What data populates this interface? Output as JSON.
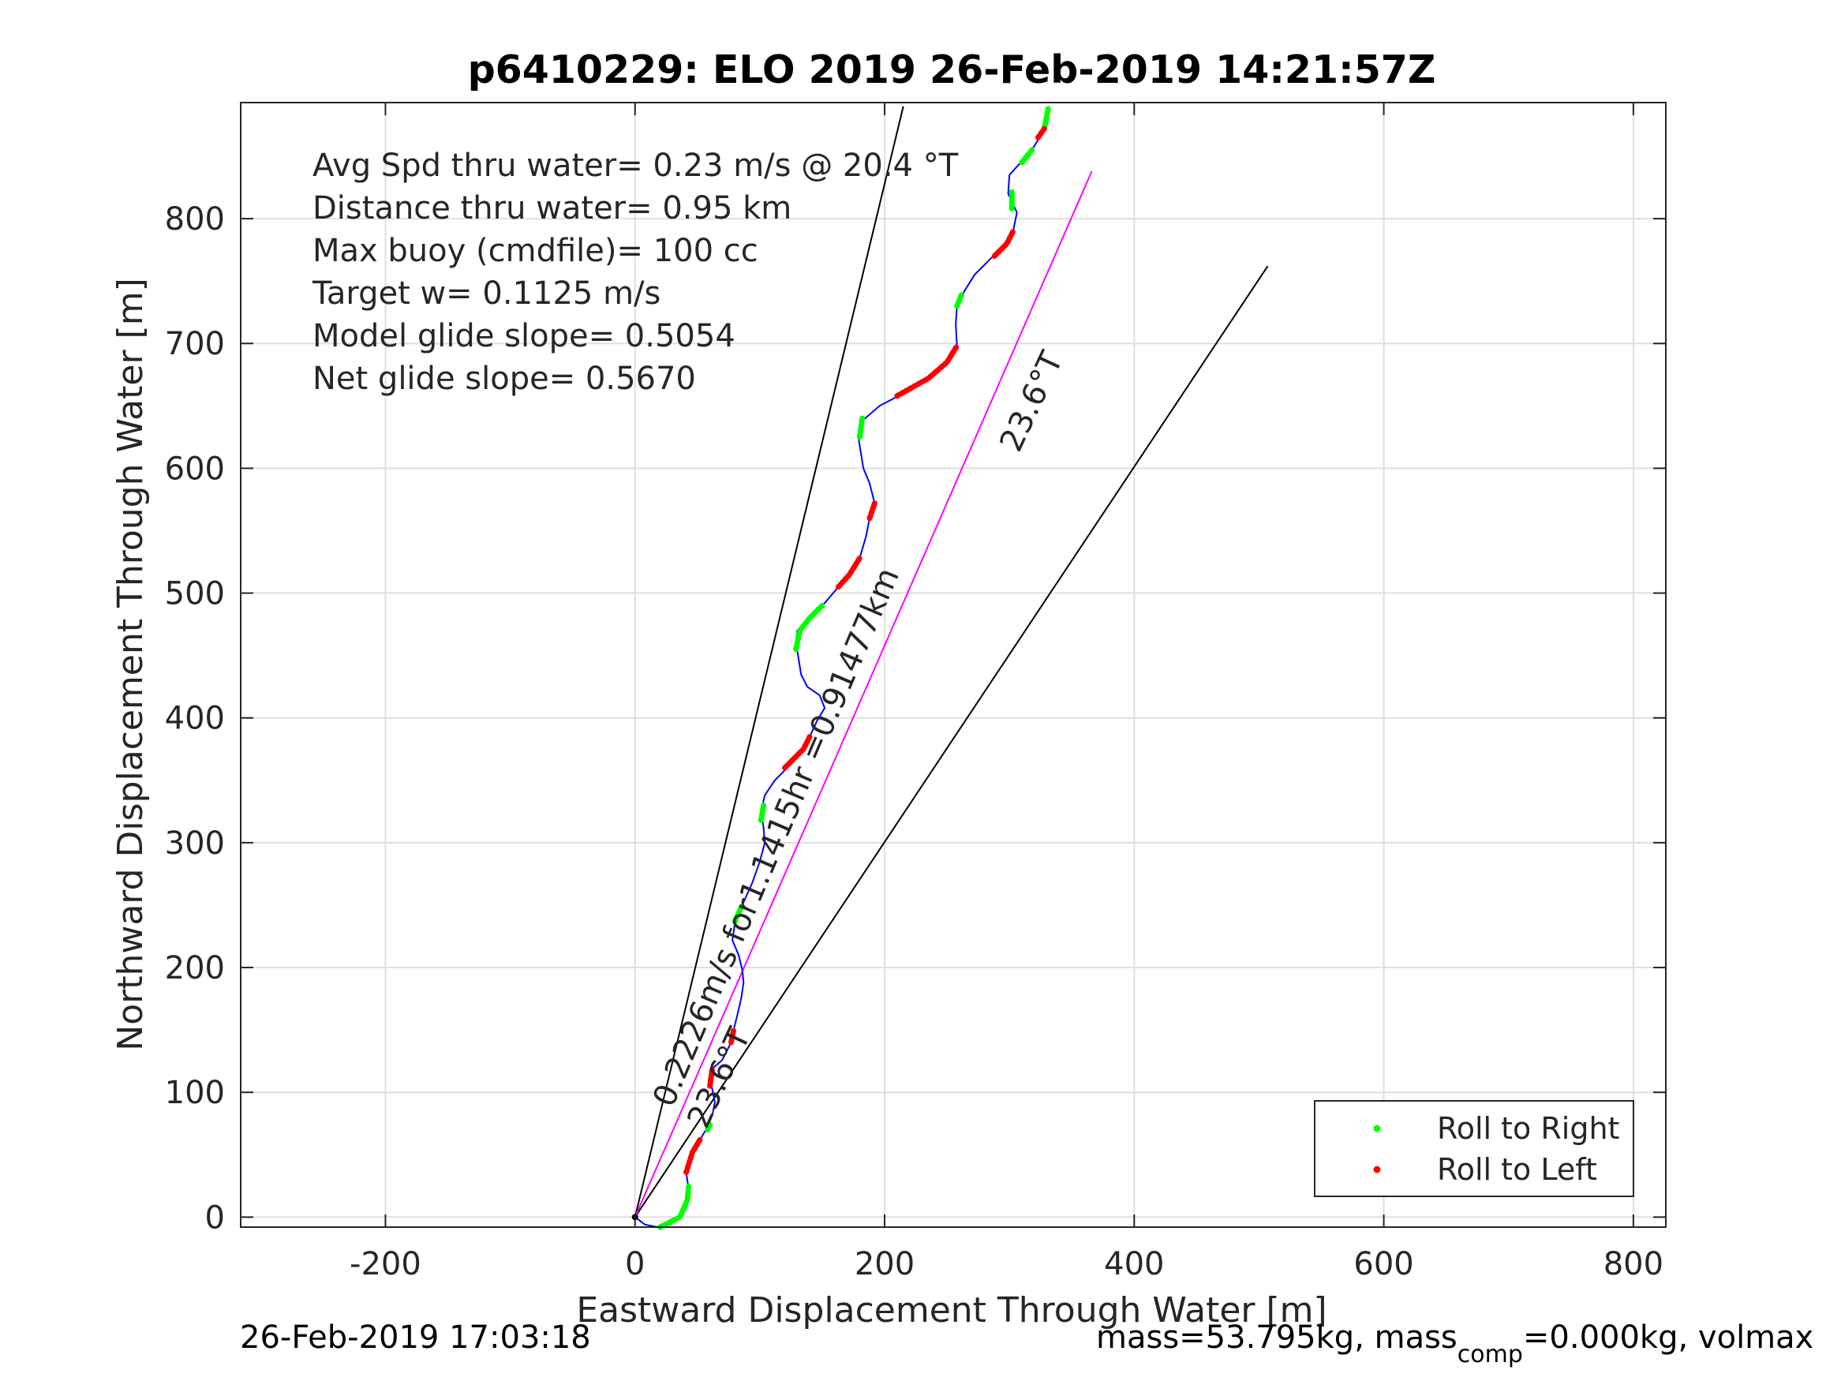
{
  "chart_data": {
    "type": "line",
    "title": "p6410229: ELO 2019 26-Feb-2019 14:21:57Z",
    "xlabel": "Eastward Displacement Through Water [m]",
    "ylabel": "Northward Displacement Through Water [m]",
    "xlim": [
      -316,
      826
    ],
    "ylim": [
      -8,
      893
    ],
    "xticks": [
      -200,
      0,
      200,
      400,
      600,
      800
    ],
    "yticks": [
      0,
      100,
      200,
      300,
      400,
      500,
      600,
      700,
      800
    ],
    "grid": true,
    "legend_position": "bottom-right",
    "stats": [
      "Avg Spd thru water=  0.23 m/s @  20.4 °T",
      "Distance thru water=  0.95 km",
      "Max buoy (cmdfile)= 100 cc",
      "Target w= 0.1125 m/s",
      "Model glide slope= 0.5054",
      "Net glide slope= 0.5670"
    ],
    "annotations": {
      "course_label": "23.6°T",
      "net_label": "0.2226m/s for1.1415hr =0.91477km",
      "near_origin_label": "23.6°T"
    },
    "track": [
      [
        0,
        0
      ],
      [
        8,
        -6
      ],
      [
        18,
        -8
      ],
      [
        28,
        -6
      ],
      [
        36,
        0
      ],
      [
        41,
        8
      ],
      [
        43,
        22
      ],
      [
        41,
        36
      ],
      [
        45,
        50
      ],
      [
        52,
        62
      ],
      [
        58,
        72
      ],
      [
        62,
        82
      ],
      [
        64,
        92
      ],
      [
        62,
        102
      ],
      [
        60,
        112
      ],
      [
        63,
        120
      ],
      [
        70,
        126
      ],
      [
        76,
        138
      ],
      [
        79,
        150
      ],
      [
        82,
        162
      ],
      [
        85,
        175
      ],
      [
        87,
        188
      ],
      [
        86,
        198
      ],
      [
        83,
        210
      ],
      [
        78,
        222
      ],
      [
        80,
        235
      ],
      [
        86,
        250
      ],
      [
        94,
        268
      ],
      [
        100,
        285
      ],
      [
        104,
        300
      ],
      [
        103,
        312
      ],
      [
        101,
        325
      ],
      [
        104,
        338
      ],
      [
        112,
        350
      ],
      [
        122,
        360
      ],
      [
        132,
        372
      ],
      [
        140,
        385
      ],
      [
        146,
        398
      ],
      [
        152,
        408
      ],
      [
        148,
        418
      ],
      [
        138,
        425
      ],
      [
        133,
        435
      ],
      [
        131,
        448
      ],
      [
        129,
        460
      ],
      [
        130,
        470
      ],
      [
        140,
        480
      ],
      [
        152,
        492
      ],
      [
        163,
        505
      ],
      [
        172,
        515
      ],
      [
        180,
        528
      ],
      [
        185,
        545
      ],
      [
        188,
        560
      ],
      [
        192,
        572
      ],
      [
        188,
        588
      ],
      [
        183,
        600
      ],
      [
        181,
        612
      ],
      [
        179,
        625
      ],
      [
        182,
        638
      ],
      [
        196,
        650
      ],
      [
        215,
        660
      ],
      [
        235,
        672
      ],
      [
        250,
        685
      ],
      [
        258,
        698
      ],
      [
        257,
        715
      ],
      [
        258,
        730
      ],
      [
        264,
        742
      ],
      [
        272,
        755
      ],
      [
        285,
        768
      ],
      [
        298,
        780
      ],
      [
        303,
        790
      ],
      [
        306,
        805
      ],
      [
        299,
        820
      ],
      [
        300,
        835
      ],
      [
        309,
        845
      ],
      [
        318,
        855
      ],
      [
        326,
        868
      ],
      [
        330,
        878
      ],
      [
        331,
        888
      ]
    ],
    "roll_right_segments": [
      [
        [
          20,
          -8
        ],
        [
          36,
          0
        ],
        [
          42,
          14
        ],
        [
          43,
          25
        ]
      ],
      [
        [
          58,
          70
        ],
        [
          60,
          74
        ]
      ],
      [
        [
          80,
          237
        ],
        [
          86,
          250
        ]
      ],
      [
        [
          101,
          318
        ],
        [
          103,
          330
        ]
      ],
      [
        [
          129,
          455
        ],
        [
          132,
          470
        ],
        [
          140,
          480
        ],
        [
          150,
          490
        ]
      ],
      [
        [
          180,
          625
        ],
        [
          182,
          640
        ]
      ],
      [
        [
          258,
          730
        ],
        [
          262,
          740
        ]
      ],
      [
        [
          302,
          808
        ],
        [
          302,
          822
        ]
      ],
      [
        [
          310,
          845
        ],
        [
          318,
          855
        ]
      ],
      [
        [
          328,
          872
        ],
        [
          331,
          888
        ]
      ]
    ],
    "roll_left_segments": [
      [
        [
          41,
          36
        ],
        [
          46,
          52
        ],
        [
          52,
          62
        ]
      ],
      [
        [
          60,
          105
        ],
        [
          62,
          120
        ]
      ],
      [
        [
          77,
          140
        ],
        [
          79,
          150
        ]
      ],
      [
        [
          120,
          360
        ],
        [
          135,
          375
        ],
        [
          140,
          385
        ]
      ],
      [
        [
          163,
          505
        ],
        [
          172,
          515
        ],
        [
          180,
          528
        ]
      ],
      [
        [
          188,
          560
        ],
        [
          192,
          572
        ]
      ],
      [
        [
          210,
          658
        ],
        [
          235,
          672
        ],
        [
          250,
          685
        ],
        [
          258,
          698
        ]
      ],
      [
        [
          288,
          770
        ],
        [
          298,
          780
        ],
        [
          303,
          790
        ]
      ],
      [
        [
          323,
          865
        ],
        [
          328,
          872
        ]
      ]
    ],
    "course_line": {
      "start": [
        0,
        0
      ],
      "end": [
        366,
        838
      ]
    },
    "cone_lines": [
      {
        "start": [
          0,
          0
        ],
        "end": [
          215,
          890
        ]
      },
      {
        "start": [
          0,
          0
        ],
        "end": [
          507,
          762
        ]
      }
    ],
    "legend": [
      "Roll to Right",
      "Roll to Left"
    ],
    "colors": {
      "track": "#0000ff",
      "roll_right": "#00ff00",
      "roll_left": "#ff0000",
      "course_line": "#ff00ff",
      "cone_lines": "#000000",
      "grid": "#dfdfdf"
    }
  },
  "footer": {
    "timestamp": "26-Feb-2019 17:03:18",
    "mass_prefix": "mass=53.795kg, mass",
    "mass_sub": "comp",
    "mass_suffix": "=0.000kg, volmax"
  }
}
